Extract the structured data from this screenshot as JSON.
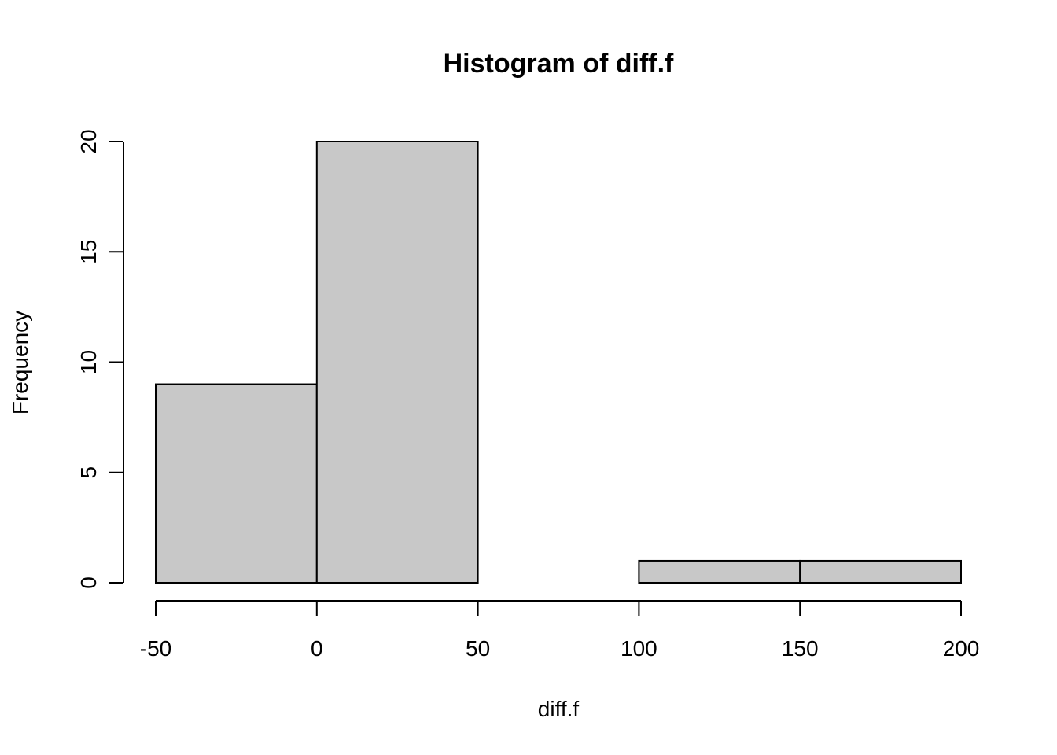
{
  "chart_data": {
    "type": "bar",
    "title": "Histogram of diff.f",
    "xlabel": "diff.f",
    "ylabel": "Frequency",
    "bins": [
      {
        "from": -50,
        "to": 0,
        "count": 9
      },
      {
        "from": 0,
        "to": 50,
        "count": 20
      },
      {
        "from": 50,
        "to": 100,
        "count": 0
      },
      {
        "from": 100,
        "to": 150,
        "count": 1
      },
      {
        "from": 150,
        "to": 200,
        "count": 1
      }
    ],
    "xlim": [
      -50,
      200
    ],
    "ylim": [
      0,
      20
    ],
    "x_ticks": [
      "-50",
      "0",
      "50",
      "100",
      "150",
      "200"
    ],
    "y_ticks": [
      "0",
      "5",
      "10",
      "15",
      "20"
    ],
    "grid": false,
    "legend": "none",
    "bar_color": "#c8c8c8",
    "edge_color": "#000000"
  }
}
